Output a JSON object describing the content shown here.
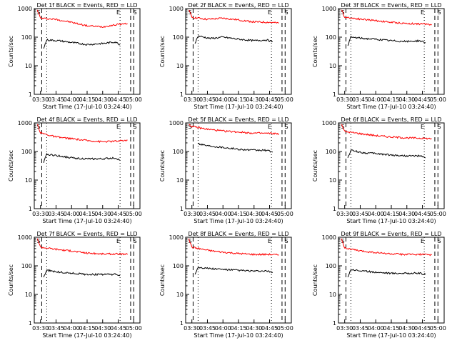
{
  "chart_data": [
    {
      "type": "line",
      "title": "Det 1f BLACK = Events, RED = LLD",
      "xlabel": "Start Time (17-Jul-10 03:24:40)",
      "ylabel": "Counts/sec",
      "y_scale": "log",
      "ylim": [
        1,
        1000
      ],
      "x_tick_labels": [
        "03:30",
        "03:45",
        "04:00",
        "04:15",
        "04:30",
        "04:45",
        "05:00"
      ],
      "y_tick_labels": [
        "1",
        "10",
        "100",
        "1000"
      ],
      "markers": [
        "S",
        "E",
        "S"
      ],
      "series": [
        {
          "color": "#ff0000",
          "values": [
            [
              3.45,
              900
            ],
            [
              3.5,
              460
            ],
            [
              3.75,
              420
            ],
            [
              4.0,
              330
            ],
            [
              4.25,
              250
            ],
            [
              4.5,
              230
            ],
            [
              4.75,
              280
            ],
            [
              4.9,
              300
            ]
          ]
        },
        {
          "color": "#000000",
          "values": [
            [
              3.55,
              40
            ],
            [
              3.6,
              80
            ],
            [
              3.8,
              75
            ],
            [
              4.0,
              65
            ],
            [
              4.25,
              55
            ],
            [
              4.5,
              60
            ],
            [
              4.7,
              68
            ],
            [
              4.78,
              55
            ]
          ]
        }
      ]
    },
    {
      "type": "line",
      "title": "Det 2f BLACK = Events, RED = LLD",
      "xlabel": "Start Time (17-Jul-10 03:24:40)",
      "ylabel": "Counts/sec",
      "y_scale": "log",
      "ylim": [
        1,
        1000
      ],
      "x_tick_labels": [
        "03:30",
        "03:45",
        "04:00",
        "04:15",
        "04:30",
        "04:45",
        "05:00"
      ],
      "y_tick_labels": [
        "1",
        "10",
        "100",
        "1000"
      ],
      "markers": [
        "S",
        "E",
        "S"
      ],
      "series": [
        {
          "color": "#ff0000",
          "values": [
            [
              3.45,
              900
            ],
            [
              3.5,
              500
            ],
            [
              3.75,
              420
            ],
            [
              4.0,
              460
            ],
            [
              4.25,
              400
            ],
            [
              4.5,
              340
            ],
            [
              4.75,
              330
            ],
            [
              4.9,
              310
            ]
          ]
        },
        {
          "color": "#000000",
          "values": [
            [
              3.55,
              60
            ],
            [
              3.6,
              110
            ],
            [
              3.8,
              90
            ],
            [
              4.0,
              100
            ],
            [
              4.25,
              85
            ],
            [
              4.5,
              75
            ],
            [
              4.7,
              80
            ],
            [
              4.8,
              70
            ]
          ]
        }
      ]
    },
    {
      "type": "line",
      "title": "Det 3f BLACK = Events, RED = LLD",
      "xlabel": "Start Time (17-Jul-10 03:24:40)",
      "ylabel": "Counts/sec",
      "y_scale": "log",
      "ylim": [
        1,
        1000
      ],
      "x_tick_labels": [
        "03:30",
        "03:45",
        "04:00",
        "04:15",
        "04:30",
        "04:45",
        "05:00"
      ],
      "y_tick_labels": [
        "1",
        "10",
        "100",
        "1000"
      ],
      "markers": [
        "S",
        "E",
        "S"
      ],
      "series": [
        {
          "color": "#ff0000",
          "values": [
            [
              3.45,
              900
            ],
            [
              3.5,
              500
            ],
            [
              3.75,
              430
            ],
            [
              4.0,
              380
            ],
            [
              4.25,
              330
            ],
            [
              4.5,
              300
            ],
            [
              4.75,
              290
            ],
            [
              4.9,
              280
            ]
          ]
        },
        {
          "color": "#000000",
          "values": [
            [
              3.55,
              50
            ],
            [
              3.6,
              100
            ],
            [
              3.8,
              90
            ],
            [
              4.0,
              85
            ],
            [
              4.25,
              75
            ],
            [
              4.5,
              70
            ],
            [
              4.7,
              75
            ],
            [
              4.8,
              65
            ]
          ]
        }
      ]
    },
    {
      "type": "line",
      "title": "Det 4f BLACK = Events, RED = LLD",
      "xlabel": "Start Time (17-Jul-10 03:24:40)",
      "ylabel": "Counts/sec",
      "y_scale": "log",
      "ylim": [
        1,
        1000
      ],
      "x_tick_labels": [
        "03:30",
        "03:45",
        "04:00",
        "04:15",
        "04:30",
        "04:45",
        "05:00"
      ],
      "y_tick_labels": [
        "1",
        "10",
        "100",
        "1000"
      ],
      "markers": [
        "S",
        "E",
        "S"
      ],
      "series": [
        {
          "color": "#ff0000",
          "values": [
            [
              3.45,
              900
            ],
            [
              3.5,
              450
            ],
            [
              3.75,
              320
            ],
            [
              4.0,
              280
            ],
            [
              4.25,
              240
            ],
            [
              4.5,
              220
            ],
            [
              4.75,
              230
            ],
            [
              4.9,
              250
            ]
          ]
        },
        {
          "color": "#000000",
          "values": [
            [
              3.55,
              40
            ],
            [
              3.6,
              80
            ],
            [
              3.8,
              70
            ],
            [
              4.0,
              60
            ],
            [
              4.25,
              55
            ],
            [
              4.5,
              55
            ],
            [
              4.7,
              60
            ],
            [
              4.78,
              50
            ]
          ]
        }
      ]
    },
    {
      "type": "line",
      "title": "Det 5f BLACK = Events, RED = LLD",
      "xlabel": "Start Time (17-Jul-10 03:24:40)",
      "ylabel": "Counts/sec",
      "y_scale": "log",
      "ylim": [
        1,
        1000
      ],
      "x_tick_labels": [
        "03:30",
        "03:45",
        "04:00",
        "04:15",
        "04:30",
        "04:45",
        "05:00"
      ],
      "y_tick_labels": [
        "1",
        "10",
        "100",
        "1000"
      ],
      "markers": [
        "S",
        "E",
        "S"
      ],
      "series": [
        {
          "color": "#ff0000",
          "values": [
            [
              3.45,
              900
            ],
            [
              3.5,
              750
            ],
            [
              3.75,
              600
            ],
            [
              4.0,
              520
            ],
            [
              4.25,
              480
            ],
            [
              4.5,
              440
            ],
            [
              4.75,
              430
            ],
            [
              4.9,
              420
            ]
          ]
        },
        {
          "color": "#000000",
          "values": [
            [
              3.6,
              190
            ],
            [
              3.75,
              160
            ],
            [
              4.0,
              140
            ],
            [
              4.25,
              120
            ],
            [
              4.5,
              110
            ],
            [
              4.7,
              110
            ],
            [
              4.8,
              95
            ]
          ]
        }
      ]
    },
    {
      "type": "line",
      "title": "Det 6f BLACK = Events, RED = LLD",
      "xlabel": "Start Time (17-Jul-10 03:24:40)",
      "ylabel": "Counts/sec",
      "y_scale": "log",
      "ylim": [
        1,
        1000
      ],
      "x_tick_labels": [
        "03:30",
        "03:45",
        "04:00",
        "04:15",
        "04:30",
        "04:45",
        "05:00"
      ],
      "y_tick_labels": [
        "1",
        "10",
        "100",
        "1000"
      ],
      "markers": [
        "S",
        "E",
        "S"
      ],
      "series": [
        {
          "color": "#ff0000",
          "values": [
            [
              3.45,
              900
            ],
            [
              3.5,
              500
            ],
            [
              3.75,
              420
            ],
            [
              4.0,
              360
            ],
            [
              4.25,
              320
            ],
            [
              4.5,
              300
            ],
            [
              4.75,
              290
            ],
            [
              4.9,
              280
            ]
          ]
        },
        {
          "color": "#000000",
          "values": [
            [
              3.55,
              60
            ],
            [
              3.6,
              110
            ],
            [
              3.8,
              90
            ],
            [
              4.0,
              85
            ],
            [
              4.25,
              75
            ],
            [
              4.5,
              70
            ],
            [
              4.7,
              70
            ],
            [
              4.8,
              60
            ]
          ]
        }
      ]
    },
    {
      "type": "line",
      "title": "Det 7f BLACK = Events, RED = LLD",
      "xlabel": "Start Time (17-Jul-10 03:24:40)",
      "ylabel": "Counts/sec",
      "y_scale": "log",
      "ylim": [
        1,
        1000
      ],
      "x_tick_labels": [
        "03:30",
        "03:45",
        "04:00",
        "04:15",
        "04:30",
        "04:45",
        "05:00"
      ],
      "y_tick_labels": [
        "1",
        "10",
        "100",
        "1000"
      ],
      "markers": [
        "S",
        "E",
        "S"
      ],
      "series": [
        {
          "color": "#ff0000",
          "values": [
            [
              3.45,
              900
            ],
            [
              3.5,
              450
            ],
            [
              3.75,
              380
            ],
            [
              4.0,
              330
            ],
            [
              4.25,
              280
            ],
            [
              4.5,
              260
            ],
            [
              4.75,
              260
            ],
            [
              4.9,
              250
            ]
          ]
        },
        {
          "color": "#000000",
          "values": [
            [
              3.55,
              40
            ],
            [
              3.6,
              70
            ],
            [
              3.8,
              60
            ],
            [
              4.0,
              55
            ],
            [
              4.25,
              50
            ],
            [
              4.5,
              50
            ],
            [
              4.7,
              50
            ],
            [
              4.78,
              45
            ]
          ]
        }
      ]
    },
    {
      "type": "line",
      "title": "Det 8f BLACK = Events, RED = LLD",
      "xlabel": "Start Time (17-Jul-10 03:24:40)",
      "ylabel": "Counts/sec",
      "y_scale": "log",
      "ylim": [
        1,
        1000
      ],
      "x_tick_labels": [
        "03:30",
        "03:45",
        "04:00",
        "04:15",
        "04:30",
        "04:45",
        "05:00"
      ],
      "y_tick_labels": [
        "1",
        "10",
        "100",
        "1000"
      ],
      "markers": [
        "S",
        "E",
        "S"
      ],
      "series": [
        {
          "color": "#ff0000",
          "values": [
            [
              3.45,
              900
            ],
            [
              3.5,
              450
            ],
            [
              3.75,
              350
            ],
            [
              4.0,
              300
            ],
            [
              4.25,
              270
            ],
            [
              4.5,
              250
            ],
            [
              4.75,
              250
            ],
            [
              4.9,
              240
            ]
          ]
        },
        {
          "color": "#000000",
          "values": [
            [
              3.55,
              50
            ],
            [
              3.6,
              90
            ],
            [
              3.8,
              80
            ],
            [
              4.0,
              75
            ],
            [
              4.25,
              70
            ],
            [
              4.5,
              65
            ],
            [
              4.7,
              65
            ],
            [
              4.8,
              60
            ]
          ]
        }
      ]
    },
    {
      "type": "line",
      "title": "Det 9f BLACK = Events, RED = LLD",
      "xlabel": "Start Time (17-Jul-10 03:24:40)",
      "ylabel": "Counts/sec",
      "y_scale": "log",
      "ylim": [
        1,
        1000
      ],
      "x_tick_labels": [
        "03:30",
        "03:45",
        "04:00",
        "04:15",
        "04:30",
        "04:45",
        "05:00"
      ],
      "y_tick_labels": [
        "1",
        "10",
        "100",
        "1000"
      ],
      "markers": [
        "S",
        "E",
        "S"
      ],
      "series": [
        {
          "color": "#ff0000",
          "values": [
            [
              3.45,
              900
            ],
            [
              3.5,
              420
            ],
            [
              3.75,
              330
            ],
            [
              4.0,
              290
            ],
            [
              4.25,
              260
            ],
            [
              4.5,
              250
            ],
            [
              4.75,
              250
            ],
            [
              4.9,
              240
            ]
          ]
        },
        {
          "color": "#000000",
          "values": [
            [
              3.55,
              40
            ],
            [
              3.6,
              75
            ],
            [
              3.8,
              65
            ],
            [
              4.0,
              60
            ],
            [
              4.25,
              55
            ],
            [
              4.5,
              55
            ],
            [
              4.7,
              55
            ],
            [
              4.8,
              50
            ]
          ]
        }
      ]
    }
  ]
}
